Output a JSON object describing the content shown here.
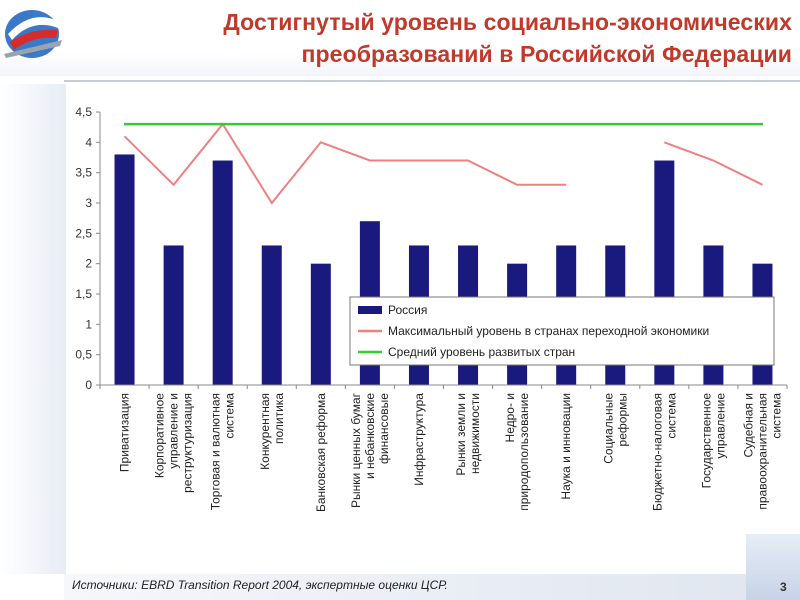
{
  "slide": {
    "title": "Достигнутый уровень социально-экономических преобразований в Российской Федерации",
    "source": "Источники: EBRD Transition Report 2004, экспертные оценки ЦСР.",
    "page_number": "3"
  },
  "chart_data": {
    "type": "bar",
    "title": "",
    "xlabel": "",
    "ylabel": "",
    "ylim": [
      0,
      4.5
    ],
    "yticks": [
      "0",
      "0,5",
      "1",
      "1,5",
      "2",
      "2,5",
      "3",
      "3,5",
      "4",
      "4,5"
    ],
    "grid": false,
    "legend_position": "right, overlapping lower plot area",
    "categories": [
      [
        "Приватизация"
      ],
      [
        "Корпоративное",
        "управление и",
        "реструктуризация"
      ],
      [
        "Торговая и валютная",
        "система"
      ],
      [
        "Конкурентная",
        "политика"
      ],
      [
        "Банковская реформа"
      ],
      [
        "Рынки ценных бумаг",
        "и небанковские",
        "финансовые"
      ],
      [
        "Инфраструктура"
      ],
      [
        "Рынки земли и",
        "недвижимости"
      ],
      [
        "Недро- и",
        "природопользование"
      ],
      [
        "Наука и инновации"
      ],
      [
        "Социальные",
        "реформы"
      ],
      [
        "Бюджетно-налоговая",
        "система"
      ],
      [
        "Государственное",
        "управление"
      ],
      [
        "Судебная и",
        "правоохранительная",
        "система"
      ]
    ],
    "series": [
      {
        "name": "Россия",
        "kind": "bar",
        "color": "#1a1a7e",
        "values": [
          3.8,
          2.3,
          3.7,
          2.3,
          2.0,
          2.7,
          2.3,
          2.3,
          2.0,
          2.3,
          2.3,
          3.7,
          2.3,
          2.0
        ]
      },
      {
        "name": "Максимальный уровень в странах переходной экономики",
        "kind": "line",
        "color": "#ee8080",
        "values": [
          4.1,
          3.3,
          4.3,
          3.0,
          4.0,
          3.7,
          3.7,
          3.7,
          3.3,
          3.3,
          null,
          4.0,
          3.7,
          3.3
        ]
      },
      {
        "name": "Средний уровень развитых стран",
        "kind": "line",
        "color": "#33cc33",
        "values": [
          4.3,
          4.3,
          4.3,
          4.3,
          4.3,
          4.3,
          4.3,
          4.3,
          4.3,
          4.3,
          4.3,
          4.3,
          4.3,
          4.3
        ]
      }
    ]
  }
}
